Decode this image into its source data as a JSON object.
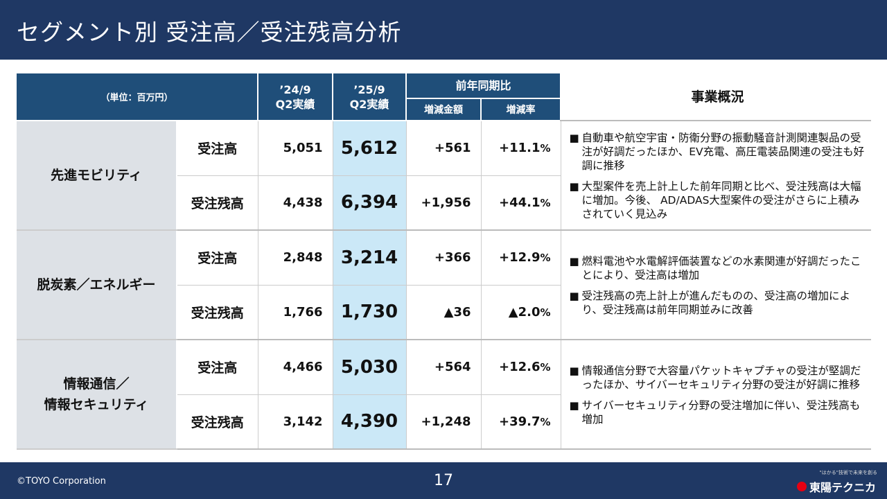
{
  "header": {
    "title": "セグメント別 受注高／受注残高分析"
  },
  "table": {
    "unit_label": "（単位：百万円）",
    "col_prev": [
      "’24/9",
      "Q2実績"
    ],
    "col_cur": [
      "’25/9",
      "Q2実績"
    ],
    "col_yoy": "前年同期比",
    "col_diff": "増減金額",
    "col_rate": "増減率",
    "col_business": "事業概況",
    "segments": [
      {
        "name_lines": [
          "先進モビリティ"
        ],
        "rows": [
          {
            "label": "受注高",
            "prev": "5,051",
            "cur": "5,612",
            "diff": "+561",
            "rate": "+11.1",
            "pct": "%"
          },
          {
            "label": "受注残高",
            "prev": "4,438",
            "cur": "6,394",
            "diff": "+1,956",
            "rate": "+44.1",
            "pct": "%"
          }
        ],
        "notes": [
          "自動車や航空宇宙・防衛分野の振動騒音計測関連製品の受注が好調だったほか、EV充電、高圧電装品関連の受注も好調に推移",
          "大型案件を売上計上した前年同期と比べ、受注残高は大幅に増加。今後、 AD/ADAS大型案件の受注がさらに上積みされていく見込み"
        ]
      },
      {
        "name_lines": [
          "脱炭素／エネルギー"
        ],
        "rows": [
          {
            "label": "受注高",
            "prev": "2,848",
            "cur": "3,214",
            "diff": "+366",
            "rate": "+12.9",
            "pct": "%"
          },
          {
            "label": "受注残高",
            "prev": "1,766",
            "cur": "1,730",
            "diff": "▲36",
            "rate": "▲2.0",
            "pct": "%"
          }
        ],
        "notes": [
          "燃料電池や水電解評価装置などの水素関連が好調だったことにより、受注高は増加",
          "受注残高の売上計上が進んだものの、受注高の増加により、受注残高は前年同期並みに改善"
        ]
      },
      {
        "name_lines": [
          "情報通信／",
          "情報セキュリティ"
        ],
        "rows": [
          {
            "label": "受注高",
            "prev": "4,466",
            "cur": "5,030",
            "diff": "+564",
            "rate": "+12.6",
            "pct": "%"
          },
          {
            "label": "受注残高",
            "prev": "3,142",
            "cur": "4,390",
            "diff": "+1,248",
            "rate": "+39.7",
            "pct": "%"
          }
        ],
        "notes": [
          "情報通信分野で大容量パケットキャプチャの受注が堅調だったほか、サイバーセキュリティ分野の受注が好調に推移",
          "サイバーセキュリティ分野の受注増加に伴い、受注残高も増加"
        ]
      }
    ],
    "bullet_mark": "■"
  },
  "footer": {
    "copyright": "©TOYO Corporation",
    "page_number": "17",
    "logo_tagline": "\"はかる\"技術で未来を創る",
    "logo_name": "東陽テクニカ"
  },
  "colors": {
    "header_bg": "#1f3864",
    "table_head": "#1f4e79",
    "highlight": "#cbe8f7",
    "logo_red": "#e60012"
  }
}
